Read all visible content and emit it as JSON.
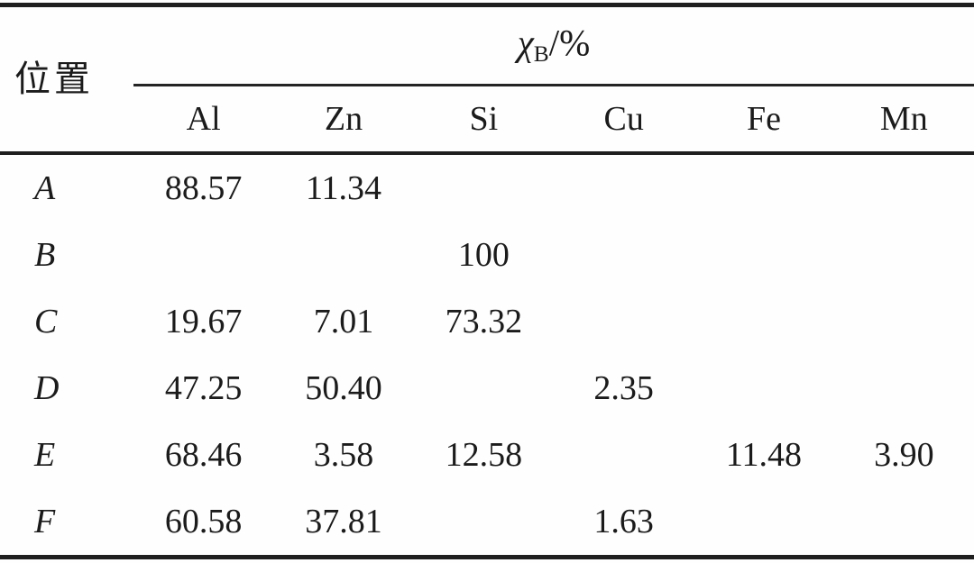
{
  "table": {
    "position_header": "位置",
    "chi_header": {
      "symbol": "χ",
      "subscript": "B",
      "suffix": "/%"
    },
    "columns": [
      "Al",
      "Zn",
      "Si",
      "Cu",
      "Fe",
      "Mn"
    ],
    "rows": [
      {
        "label": "A",
        "values": [
          "88.57",
          "11.34",
          "",
          "",
          "",
          ""
        ]
      },
      {
        "label": "B",
        "values": [
          "",
          "",
          "100",
          "",
          "",
          ""
        ]
      },
      {
        "label": "C",
        "values": [
          "19.67",
          "7.01",
          "73.32",
          "",
          "",
          ""
        ]
      },
      {
        "label": "D",
        "values": [
          "47.25",
          "50.40",
          "",
          "2.35",
          "",
          ""
        ]
      },
      {
        "label": "E",
        "values": [
          "68.46",
          "3.58",
          "12.58",
          "",
          "11.48",
          "3.90"
        ]
      },
      {
        "label": "F",
        "values": [
          "60.58",
          "37.81",
          "",
          "1.63",
          "",
          ""
        ]
      }
    ]
  },
  "colors": {
    "background": "#fefefe",
    "rule_line": "#1f1f1f",
    "text": "#1b1b1b"
  },
  "chart_data": {
    "type": "table",
    "title": "χB/% composition by position",
    "categories": [
      "Al",
      "Zn",
      "Si",
      "Cu",
      "Fe",
      "Mn"
    ],
    "series": [
      {
        "name": "A",
        "values": [
          88.57,
          11.34,
          null,
          null,
          null,
          null
        ]
      },
      {
        "name": "B",
        "values": [
          null,
          null,
          100,
          null,
          null,
          null
        ]
      },
      {
        "name": "C",
        "values": [
          19.67,
          7.01,
          73.32,
          null,
          null,
          null
        ]
      },
      {
        "name": "D",
        "values": [
          47.25,
          50.4,
          null,
          2.35,
          null,
          null
        ]
      },
      {
        "name": "E",
        "values": [
          68.46,
          3.58,
          12.58,
          null,
          11.48,
          3.9
        ]
      },
      {
        "name": "F",
        "values": [
          60.58,
          37.81,
          null,
          1.63,
          null,
          null
        ]
      }
    ]
  }
}
